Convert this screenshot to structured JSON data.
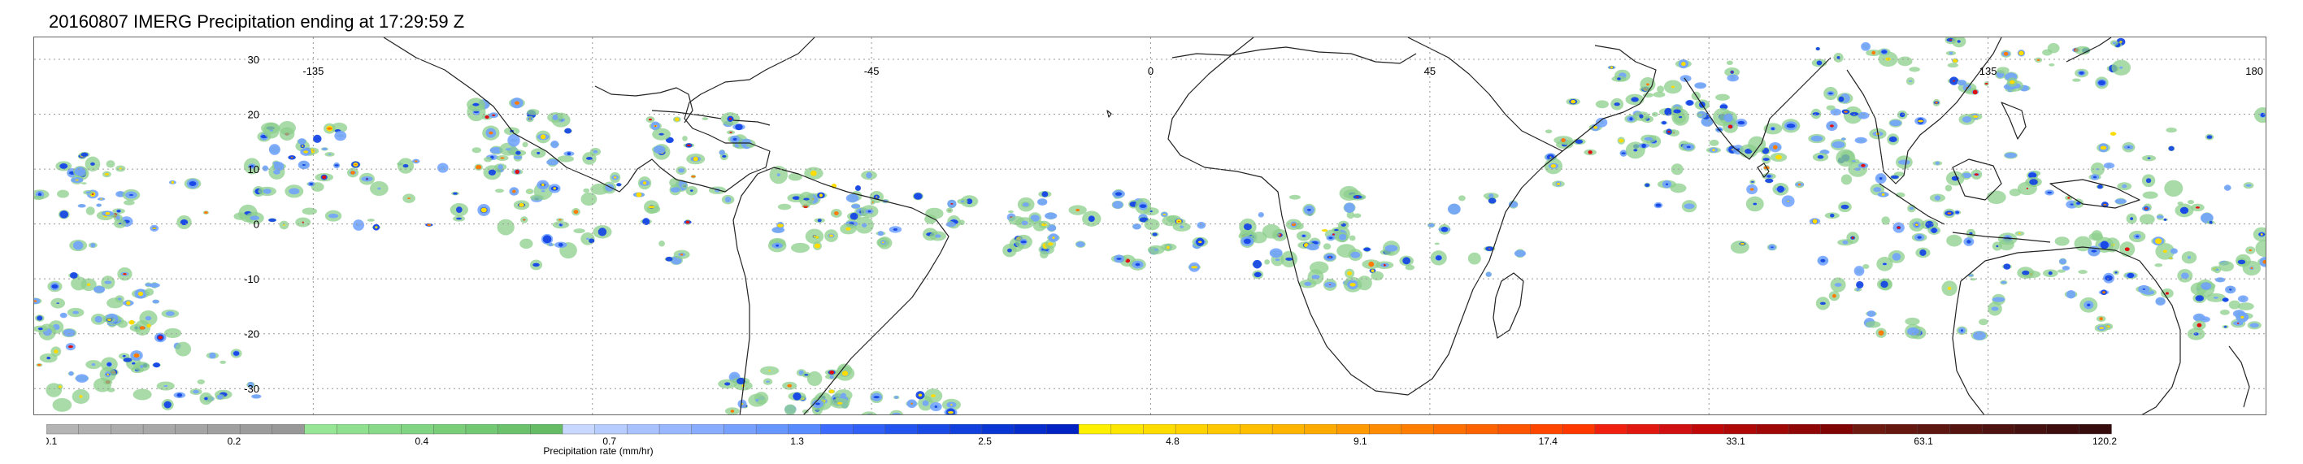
{
  "title": "20160807 IMERG Precipitation ending at 17:29:59 Z",
  "map": {
    "projection": "equirectangular",
    "lon_range": [
      -180,
      180
    ],
    "lat_range": [
      -35,
      34
    ],
    "gridlines": "dotted",
    "lon_labels": [
      "-135",
      "-45",
      "0",
      "45",
      "135",
      "180"
    ],
    "lat_labels": [
      "30",
      "20",
      "10",
      "0",
      "-10",
      "-20",
      "-30"
    ]
  },
  "colorbar": {
    "title": "Precipitation rate (mm/hr)",
    "tick_labels": [
      "0.1",
      "0.2",
      "0.4",
      "0.7",
      "1.3",
      "2.5",
      "4.8",
      "9.1",
      "17.4",
      "33.1",
      "63.1",
      "120.2"
    ],
    "colors": [
      "#b4b4b4",
      "#b0b0b0",
      "#acacac",
      "#a8a8a8",
      "#a4a4a4",
      "#a0a0a0",
      "#9c9c9c",
      "#989898",
      "#96e696",
      "#8fe08f",
      "#88da88",
      "#81d481",
      "#7ace7a",
      "#73c873",
      "#6cc26c",
      "#65bc65",
      "#c8d8ff",
      "#b8cdff",
      "#a8c2ff",
      "#98b7ff",
      "#88acff",
      "#78a1ff",
      "#6896ff",
      "#588bff",
      "#3d6bff",
      "#3060f7",
      "#2355ee",
      "#1a4ae6",
      "#1240dd",
      "#0a36d4",
      "#062ccb",
      "#0022c2",
      "#fff000",
      "#ffe600",
      "#ffdc00",
      "#ffd200",
      "#ffc800",
      "#ffbe00",
      "#ffb400",
      "#ffaa00",
      "#ff9a00",
      "#ff8c00",
      "#ff7e00",
      "#ff7000",
      "#ff6200",
      "#ff5400",
      "#ff4600",
      "#ff3800",
      "#f02010",
      "#e01810",
      "#d01010",
      "#c00808",
      "#b00808",
      "#a00808",
      "#900606",
      "#800404",
      "#6e1a10",
      "#661810",
      "#5e1610",
      "#561410",
      "#4e1210",
      "#461010",
      "#3e0e0e",
      "#360c0c"
    ]
  },
  "colors": {
    "coastline": "#222222",
    "gridline": "#999999",
    "light_green": "#8ccf8c",
    "blue": "#1040e6",
    "light_blue": "#6fa0ff",
    "yellow": "#ffdc00",
    "orange": "#ff7a00",
    "red": "#e01010"
  }
}
